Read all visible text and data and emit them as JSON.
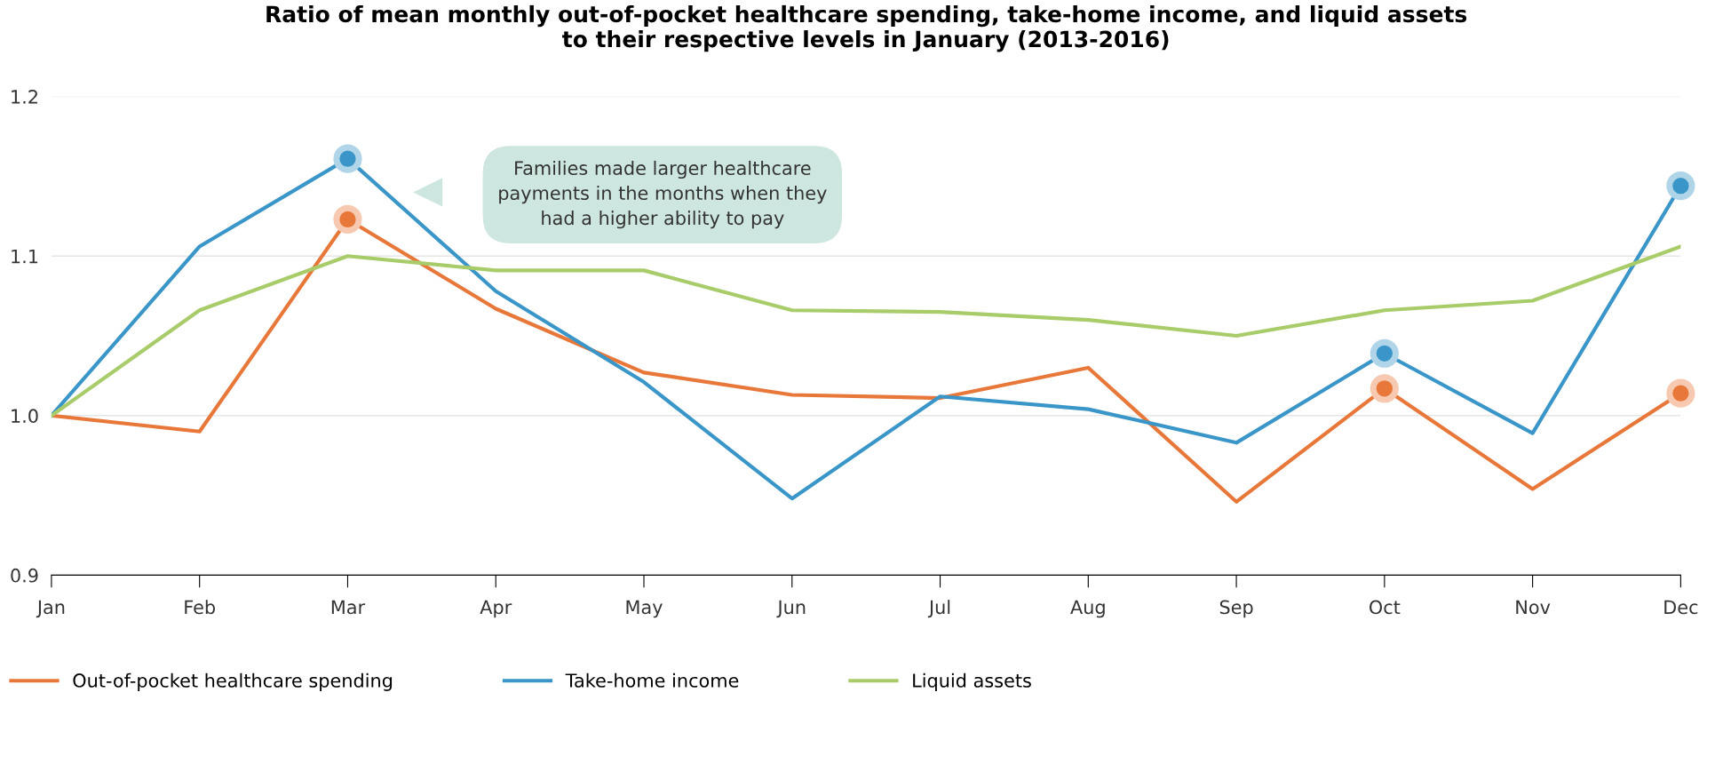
{
  "chart_data": {
    "type": "line",
    "title": "Ratio of mean monthly out-of-pocket healthcare spending, take-home income, and liquid assets\nto their respective levels in January (2013-2016)",
    "categories": [
      "Jan",
      "Feb",
      "Mar",
      "Apr",
      "May",
      "Jun",
      "Jul",
      "Aug",
      "Sep",
      "Oct",
      "Nov",
      "Dec"
    ],
    "series": [
      {
        "name": "Out-of-pocket healthcare spending",
        "color": "#e8773a",
        "values": [
          1.0,
          0.99,
          1.123,
          1.067,
          1.027,
          1.013,
          1.011,
          1.03,
          0.946,
          1.017,
          0.954,
          1.014
        ]
      },
      {
        "name": "Take-home income",
        "color": "#3a96c8",
        "values": [
          1.0,
          1.106,
          1.161,
          1.078,
          1.021,
          0.948,
          1.012,
          1.004,
          0.983,
          1.039,
          0.989,
          1.144
        ]
      },
      {
        "name": "Liquid assets",
        "color": "#a8cc6a",
        "values": [
          1.0,
          1.066,
          1.1,
          1.091,
          1.091,
          1.066,
          1.065,
          1.06,
          1.05,
          1.066,
          1.072,
          1.106
        ]
      },
      {
        "type": "scatter",
        "color": "#e8773a",
        "values": [
          null,
          null,
          1.123,
          null,
          null,
          null,
          null,
          null,
          null,
          1.017,
          null,
          1.014
        ]
      },
      {
        "type": "scatter",
        "color": "#3a96c8",
        "values": [
          null,
          null,
          1.161,
          null,
          null,
          null,
          null,
          null,
          null,
          1.039,
          null,
          1.144
        ]
      }
    ],
    "ylim": [
      0.9,
      1.2
    ],
    "yticks": [
      {
        "value": 0.9,
        "label": "0.9"
      },
      {
        "value": 1.0,
        "label": "1.0"
      },
      {
        "value": 1.1,
        "label": "1.1"
      },
      {
        "value": 1.2,
        "label": "1.2"
      }
    ],
    "grid": "y",
    "legend": "bottom",
    "annotations": [
      "Families made larger healthcare\npayments in the months when they\nhad a higher ability to pay"
    ]
  }
}
